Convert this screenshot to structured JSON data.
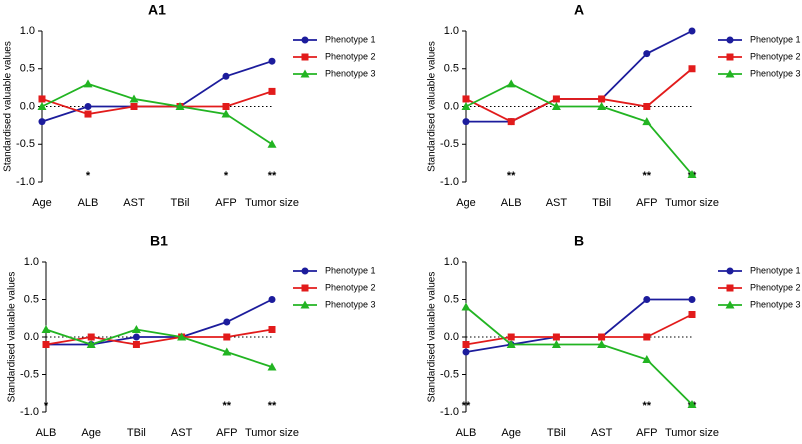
{
  "chart_data": [
    {
      "type": "line",
      "title": "A1",
      "ylabel": "Standardised valuable values",
      "categories": [
        "Age",
        "ALB",
        "AST",
        "TBil",
        "AFP",
        "Tumor size"
      ],
      "significance": [
        null,
        "*",
        null,
        null,
        "*",
        "**"
      ],
      "series": [
        {
          "name": "Phenotype 1",
          "color": "#1c1c9c",
          "marker": "circle",
          "values": [
            -0.2,
            0,
            0,
            0,
            0.4,
            0.6
          ]
        },
        {
          "name": "Phenotype 2",
          "color": "#e21b1b",
          "marker": "square",
          "values": [
            0.1,
            -0.1,
            0,
            0,
            0,
            0.2
          ]
        },
        {
          "name": "Phenotype 3",
          "color": "#22b422",
          "marker": "triangle",
          "values": [
            0,
            0.3,
            0.1,
            0,
            -0.1,
            -0.5
          ]
        }
      ],
      "ylim": [
        -1,
        1
      ],
      "yticks": [
        {
          "value": -1,
          "label": "-1.0"
        },
        -0.5,
        {
          "value": 0,
          "label": "0.0"
        },
        0.5,
        {
          "value": 1,
          "label": "1.0"
        }
      ],
      "reference_line": 0
    },
    {
      "type": "line",
      "title": "A",
      "ylabel": "Standardised valuable values",
      "categories": [
        "Age",
        "ALB",
        "AST",
        "TBil",
        "AFP",
        "Tumor size"
      ],
      "significance": [
        null,
        "**",
        null,
        null,
        "**",
        "**"
      ],
      "series": [
        {
          "name": "Phenotype 1",
          "color": "#1c1c9c",
          "marker": "circle",
          "values": [
            -0.2,
            -0.2,
            0.1,
            0.1,
            0.7,
            1.0
          ]
        },
        {
          "name": "Phenotype 2",
          "color": "#e21b1b",
          "marker": "square",
          "values": [
            0.1,
            -0.2,
            0.1,
            0.1,
            0,
            0.5
          ]
        },
        {
          "name": "Phenotype 3",
          "color": "#22b422",
          "marker": "triangle",
          "values": [
            0,
            0.3,
            0,
            0,
            -0.2,
            -0.9
          ]
        }
      ],
      "ylim": [
        -1,
        1
      ],
      "yticks": [
        {
          "value": -1,
          "label": "-1.0"
        },
        -0.5,
        {
          "value": 0,
          "label": "0.0"
        },
        0.5,
        {
          "value": 1,
          "label": "1.0"
        }
      ],
      "reference_line": 0
    },
    {
      "type": "line",
      "title": "B1",
      "ylabel": "Standardised valuable values",
      "categories": [
        "ALB",
        "Age",
        "TBil",
        "AST",
        "AFP",
        "Tumor size"
      ],
      "significance": [
        "*",
        null,
        null,
        null,
        "**",
        "**"
      ],
      "series": [
        {
          "name": "Phenotype 1",
          "color": "#1c1c9c",
          "marker": "circle",
          "values": [
            -0.1,
            -0.1,
            0,
            0,
            0.2,
            0.5
          ]
        },
        {
          "name": "Phenotype 2",
          "color": "#e21b1b",
          "marker": "square",
          "values": [
            -0.1,
            0,
            -0.1,
            0,
            0,
            0.1
          ]
        },
        {
          "name": "Phenotype 3",
          "color": "#22b422",
          "marker": "triangle",
          "values": [
            0.1,
            -0.1,
            0.1,
            0,
            -0.2,
            -0.4
          ]
        }
      ],
      "ylim": [
        -1,
        1
      ],
      "yticks": [
        {
          "value": -1,
          "label": "-1.0"
        },
        -0.5,
        {
          "value": 0,
          "label": "0.0"
        },
        0.5,
        {
          "value": 1,
          "label": "1.0"
        }
      ],
      "reference_line": 0
    },
    {
      "type": "line",
      "title": "B",
      "ylabel": "Standardised valuable values",
      "categories": [
        "ALB",
        "Age",
        "TBil",
        "AST",
        "AFP",
        "Tumor size"
      ],
      "significance": [
        "**",
        null,
        null,
        null,
        "**",
        "**"
      ],
      "series": [
        {
          "name": "Phenotype 1",
          "color": "#1c1c9c",
          "marker": "circle",
          "values": [
            -0.2,
            -0.1,
            0,
            0,
            0.5,
            0.5
          ]
        },
        {
          "name": "Phenotype 2",
          "color": "#e21b1b",
          "marker": "square",
          "values": [
            -0.1,
            0,
            0,
            0,
            0,
            0.3
          ]
        },
        {
          "name": "Phenotype 3",
          "color": "#22b422",
          "marker": "triangle",
          "values": [
            0.4,
            -0.1,
            -0.1,
            -0.1,
            -0.3,
            -0.9
          ]
        }
      ],
      "ylim": [
        -1,
        1
      ],
      "yticks": [
        {
          "value": -1,
          "label": "-1.0"
        },
        -0.5,
        {
          "value": 0,
          "label": "0.0"
        },
        0.5,
        {
          "value": 1,
          "label": "1.0"
        }
      ],
      "reference_line": 0
    }
  ]
}
